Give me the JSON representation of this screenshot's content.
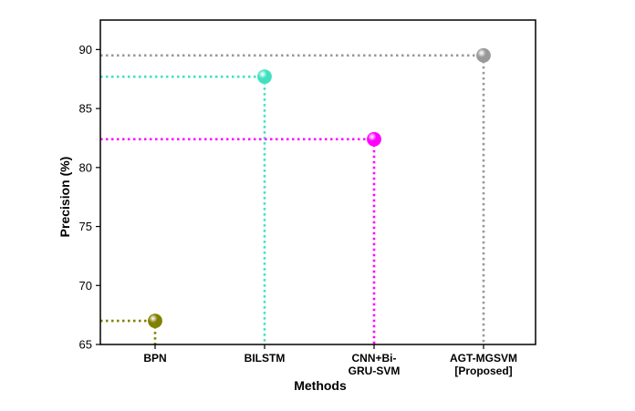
{
  "chart_data": {
    "type": "scatter",
    "title": "",
    "xlabel": "Methods",
    "ylabel": "Precision (%)",
    "ylim": [
      65,
      92.5
    ],
    "yticks": [
      65,
      70,
      75,
      80,
      85,
      90
    ],
    "grid": false,
    "legend": "none",
    "categories": [
      [
        "BPN"
      ],
      [
        "BILSTM"
      ],
      [
        "CNN+Bi-",
        "GRU-SVM"
      ],
      [
        "AGT-MGSVM",
        "[Proposed]"
      ]
    ],
    "values": [
      67.0,
      87.7,
      82.4,
      89.5
    ],
    "colors": [
      "#808000",
      "#40e0c0",
      "#ff00ff",
      "#999999"
    ]
  }
}
